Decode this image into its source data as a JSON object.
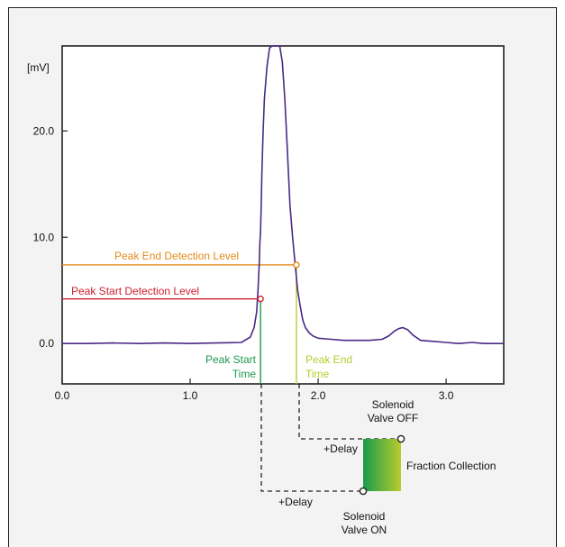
{
  "chart_data": {
    "type": "line",
    "ylabel": "[mV]",
    "xlabel": "",
    "xlim": [
      0,
      3.45
    ],
    "ylim": [
      -3.8,
      28
    ],
    "x_ticks": [
      {
        "value": 0.0,
        "label": "0.0"
      },
      {
        "value": 1.0,
        "label": "1.0"
      },
      {
        "value": 2.0,
        "label": "2.0"
      },
      {
        "value": 3.0,
        "label": "3.0"
      }
    ],
    "y_ticks": [
      {
        "value": 0.0,
        "label": "0.0"
      },
      {
        "value": 10.0,
        "label": "10.0"
      },
      {
        "value": 20.0,
        "label": "20.0"
      }
    ],
    "series": [
      {
        "color": "#4a2a86",
        "x": [
          0.0,
          0.2,
          0.4,
          0.6,
          0.8,
          1.0,
          1.2,
          1.4,
          1.47,
          1.5,
          1.52,
          1.53,
          1.54,
          1.545,
          1.55,
          1.555,
          1.56,
          1.57,
          1.58,
          1.6,
          1.62,
          1.64,
          1.66,
          1.68,
          1.7,
          1.72,
          1.74,
          1.76,
          1.78,
          1.8,
          1.82,
          1.84,
          1.86,
          1.88,
          1.9,
          1.93,
          1.96,
          2.0,
          2.1,
          2.2,
          2.3,
          2.4,
          2.5,
          2.55,
          2.6,
          2.63,
          2.66,
          2.7,
          2.74,
          2.8,
          2.9,
          3.0,
          3.1,
          3.2,
          3.3,
          3.4,
          3.45
        ],
        "y": [
          0.0,
          0.0,
          0.05,
          0.0,
          0.05,
          0.0,
          0.05,
          0.1,
          0.6,
          1.5,
          3.0,
          5.0,
          7.5,
          9.5,
          10.5,
          13.0,
          16.0,
          20.0,
          23.0,
          26.0,
          27.8,
          28.2,
          28.5,
          28.3,
          28.0,
          26.5,
          23.0,
          18.0,
          13.0,
          10.0,
          7.5,
          5.0,
          3.5,
          2.2,
          1.5,
          1.0,
          0.7,
          0.5,
          0.4,
          0.3,
          0.3,
          0.3,
          0.4,
          0.7,
          1.2,
          1.4,
          1.5,
          1.3,
          0.8,
          0.3,
          0.2,
          0.1,
          0.0,
          0.1,
          0.0,
          0.0,
          0.0
        ]
      }
    ],
    "annotations": [
      {
        "kind": "level",
        "text": "Peak Start Detection Level",
        "x_end": 1.55,
        "y": 4.2,
        "color": "#d0202e"
      },
      {
        "kind": "level",
        "text": "Peak End Detection Level",
        "x_end": 1.83,
        "y": 7.4,
        "color": "#e58a19"
      },
      {
        "kind": "time",
        "text_lines": [
          "Peak Start",
          "Time"
        ],
        "x": 1.55,
        "y_from": 4.2,
        "color": "#1a9a4e"
      },
      {
        "kind": "time",
        "text_lines": [
          "Peak End",
          "Time"
        ],
        "x": 1.83,
        "y_from": 7.4,
        "color": "#b7cc2c"
      }
    ],
    "valve_diagram": {
      "valve_off": [
        "Solenoid",
        "Valve OFF"
      ],
      "valve_on": [
        "Solenoid",
        "Valve ON"
      ],
      "delay_upper": "+Delay",
      "delay_lower": "+Delay",
      "fraction_label": "Fraction Collection",
      "gradient_start": "#1a9a4e",
      "gradient_end": "#b7cc2c"
    }
  }
}
